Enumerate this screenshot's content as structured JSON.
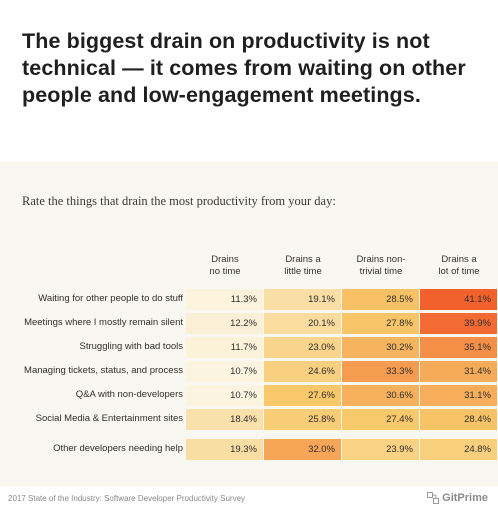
{
  "headline": {
    "line1": "The biggest drain on productivity is not",
    "line2": "technical — it comes from waiting on other",
    "line3": "people and low-engagement meetings."
  },
  "question": "Rate the things that drain the most productivity from your day:",
  "footer": "2017 State of the Industry: Software Developer Productivity Survey",
  "brand": "GitPrime",
  "chart_data": {
    "type": "heatmap",
    "title": "The biggest drain on productivity is not technical — it comes from waiting on other people and low-engagement meetings.",
    "subtitle": "Rate the things that drain the most productivity from your day:",
    "columns": [
      {
        "line1": "Drains",
        "line2": "no time"
      },
      {
        "line1": "Drains a",
        "line2": "little time"
      },
      {
        "line1": "Drains non-",
        "line2": "trivial time"
      },
      {
        "line1": "Drains a",
        "line2": "lot of time"
      }
    ],
    "rows": [
      {
        "label": "Waiting for other people to do stuff",
        "values": [
          "11.3%",
          "19.1%",
          "28.5%",
          "41.1%"
        ]
      },
      {
        "label": "Meetings where I mostly remain silent",
        "values": [
          "12.2%",
          "20.1%",
          "27.8%",
          "39.9%"
        ]
      },
      {
        "label": "Struggling with bad tools",
        "values": [
          "11.7%",
          "23.0%",
          "30.2%",
          "35.1%"
        ]
      },
      {
        "label": "Managing tickets, status, and process",
        "values": [
          "10.7%",
          "24.6%",
          "33.3%",
          "31.4%"
        ]
      },
      {
        "label": "Q&A with non-developers",
        "values": [
          "10.7%",
          "27.6%",
          "30.6%",
          "31.1%"
        ]
      },
      {
        "label": "Social Media & Entertainment sites",
        "values": [
          "18.4%",
          "25.8%",
          "27.4%",
          "28.4%"
        ]
      },
      {
        "label": "Other developers needing help",
        "values": [
          "19.3%",
          "32.0%",
          "23.9%",
          "24.8%"
        ]
      }
    ],
    "color_scale": {
      "low": "#fbf6e4",
      "mid": "#f8c86a",
      "high": "#f25a28",
      "min": 10,
      "max": 42
    }
  }
}
